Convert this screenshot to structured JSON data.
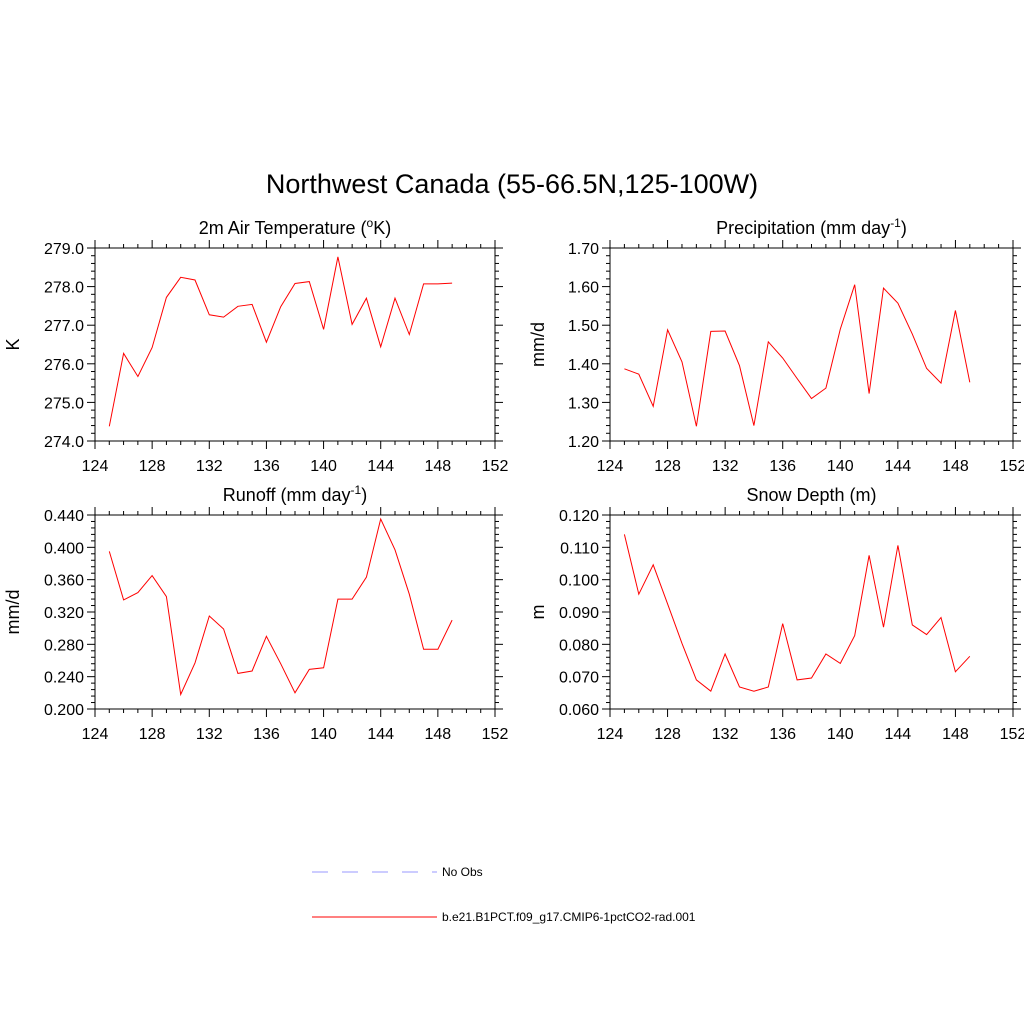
{
  "page": {
    "title": "Northwest Canada (55-66.5N,125-100W)"
  },
  "colors": {
    "series": "#ff0000",
    "obs": "#9999ff",
    "axis": "#000000",
    "background": "#ffffff"
  },
  "legend": {
    "placement": "bottom",
    "items": [
      {
        "label": "No Obs",
        "style": "dashed",
        "color": "#9999ff"
      },
      {
        "label": "b.e21.B1PCT.f09_g17.CMIP6-1pctCO2-rad.001",
        "style": "solid",
        "color": "#ff0000"
      }
    ]
  },
  "chart_data": [
    {
      "type": "line",
      "title_parts": [
        "2m Air Temperature (",
        "o",
        "K)"
      ],
      "ylabel": "K",
      "xlim": [
        124,
        152
      ],
      "xticks": [
        124,
        128,
        132,
        136,
        140,
        144,
        148,
        152
      ],
      "ylim": [
        274.0,
        279.0
      ],
      "yticks": [
        "274.0",
        "275.0",
        "276.0",
        "277.0",
        "278.0",
        "279.0"
      ],
      "grid": false,
      "series": [
        {
          "x": [
            125,
            126,
            127,
            128,
            129,
            130,
            131,
            132,
            133,
            134,
            135,
            136,
            137,
            138,
            139,
            140,
            141,
            142,
            143,
            144,
            145,
            146,
            147,
            148,
            149
          ],
          "values": [
            274.38,
            276.27,
            275.67,
            276.42,
            277.72,
            278.24,
            278.17,
            277.27,
            277.21,
            277.49,
            277.54,
            276.56,
            277.48,
            278.08,
            278.13,
            276.89,
            278.77,
            277.02,
            277.7,
            276.44,
            277.7,
            276.76,
            278.07,
            278.07,
            278.09
          ]
        }
      ]
    },
    {
      "type": "line",
      "title_parts": [
        "Precipitation (mm day",
        "-1",
        ")"
      ],
      "ylabel": "mm/d",
      "xlim": [
        124,
        152
      ],
      "xticks": [
        124,
        128,
        132,
        136,
        140,
        144,
        148,
        152
      ],
      "ylim": [
        1.2,
        1.7
      ],
      "yticks": [
        "1.20",
        "1.30",
        "1.40",
        "1.50",
        "1.60",
        "1.70"
      ],
      "grid": false,
      "series": [
        {
          "x": [
            125,
            126,
            127,
            128,
            129,
            130,
            131,
            132,
            133,
            134,
            135,
            136,
            137,
            138,
            139,
            140,
            141,
            142,
            143,
            144,
            145,
            146,
            147,
            148,
            149
          ],
          "values": [
            1.387,
            1.373,
            1.29,
            1.488,
            1.405,
            1.238,
            1.484,
            1.485,
            1.395,
            1.24,
            1.457,
            1.415,
            1.362,
            1.31,
            1.337,
            1.49,
            1.605,
            1.323,
            1.596,
            1.557,
            1.477,
            1.388,
            1.35,
            1.538,
            1.352
          ]
        }
      ]
    },
    {
      "type": "line",
      "title_parts": [
        "Runoff (mm day",
        "-1",
        ")"
      ],
      "ylabel": "mm/d",
      "xlim": [
        124,
        152
      ],
      "xticks": [
        124,
        128,
        132,
        136,
        140,
        144,
        148,
        152
      ],
      "ylim": [
        0.2,
        0.44
      ],
      "yticks": [
        "0.200",
        "0.240",
        "0.280",
        "0.320",
        "0.360",
        "0.400",
        "0.440"
      ],
      "grid": false,
      "series": [
        {
          "x": [
            125,
            126,
            127,
            128,
            129,
            130,
            131,
            132,
            133,
            134,
            135,
            136,
            137,
            138,
            139,
            140,
            141,
            142,
            143,
            144,
            145,
            146,
            147,
            148,
            149
          ],
          "values": [
            0.395,
            0.335,
            0.344,
            0.365,
            0.339,
            0.218,
            0.257,
            0.315,
            0.299,
            0.244,
            0.247,
            0.29,
            0.256,
            0.22,
            0.249,
            0.251,
            0.336,
            0.336,
            0.363,
            0.435,
            0.397,
            0.342,
            0.274,
            0.274,
            0.31
          ]
        }
      ]
    },
    {
      "type": "line",
      "title_parts": [
        "Snow Depth (m)"
      ],
      "ylabel": "m",
      "xlim": [
        124,
        152
      ],
      "xticks": [
        124,
        128,
        132,
        136,
        140,
        144,
        148,
        152
      ],
      "ylim": [
        0.06,
        0.12
      ],
      "yticks": [
        "0.060",
        "0.070",
        "0.080",
        "0.090",
        "0.100",
        "0.110",
        "0.120"
      ],
      "grid": false,
      "series": [
        {
          "x": [
            125,
            126,
            127,
            128,
            129,
            130,
            131,
            132,
            133,
            134,
            135,
            136,
            137,
            138,
            139,
            140,
            141,
            142,
            143,
            144,
            145,
            146,
            147,
            148,
            149
          ],
          "values": [
            0.114,
            0.0955,
            0.1046,
            0.0925,
            0.0803,
            0.069,
            0.0655,
            0.077,
            0.0668,
            0.0655,
            0.0668,
            0.0864,
            0.069,
            0.0696,
            0.077,
            0.0741,
            0.0827,
            0.1075,
            0.0853,
            0.1106,
            0.086,
            0.083,
            0.0883,
            0.0715,
            0.0763
          ]
        }
      ]
    }
  ]
}
